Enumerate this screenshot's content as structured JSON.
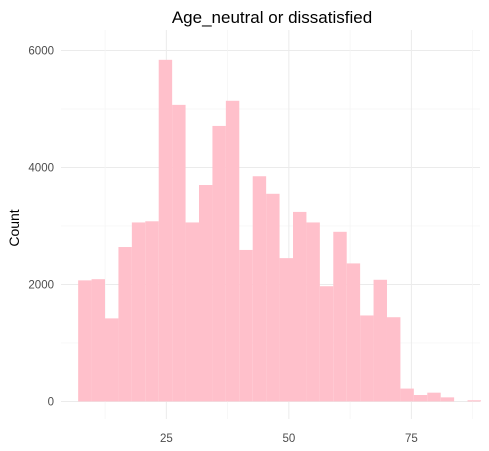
{
  "chart_data": {
    "type": "bar",
    "title": "Age_neutral or dissatisfied",
    "xlabel": "",
    "ylabel": "Count",
    "xlim": [
      3.5,
      89
    ],
    "ylim": [
      -300,
      6350
    ],
    "x_ticks": [
      25,
      50,
      75
    ],
    "y_ticks": [
      0,
      2000,
      4000,
      6000
    ],
    "grid": true,
    "bar_color": "#ffc0cb",
    "bins": [
      {
        "x0": 7.0,
        "x1": 9.74,
        "count": 2070
      },
      {
        "x0": 9.74,
        "x1": 12.48,
        "count": 2090
      },
      {
        "x0": 12.48,
        "x1": 15.22,
        "count": 1420
      },
      {
        "x0": 15.22,
        "x1": 17.96,
        "count": 2640
      },
      {
        "x0": 17.96,
        "x1": 20.7,
        "count": 3060
      },
      {
        "x0": 20.7,
        "x1": 23.44,
        "count": 3080
      },
      {
        "x0": 23.44,
        "x1": 26.18,
        "count": 5840
      },
      {
        "x0": 26.18,
        "x1": 28.92,
        "count": 5070
      },
      {
        "x0": 28.92,
        "x1": 31.66,
        "count": 3060
      },
      {
        "x0": 31.66,
        "x1": 34.4,
        "count": 3700
      },
      {
        "x0": 34.4,
        "x1": 37.14,
        "count": 4710
      },
      {
        "x0": 37.14,
        "x1": 39.88,
        "count": 5140
      },
      {
        "x0": 39.88,
        "x1": 42.62,
        "count": 2590
      },
      {
        "x0": 42.62,
        "x1": 45.36,
        "count": 3850
      },
      {
        "x0": 45.36,
        "x1": 48.1,
        "count": 3550
      },
      {
        "x0": 48.1,
        "x1": 50.84,
        "count": 2450
      },
      {
        "x0": 50.84,
        "x1": 53.58,
        "count": 3240
      },
      {
        "x0": 53.58,
        "x1": 56.32,
        "count": 3060
      },
      {
        "x0": 56.32,
        "x1": 59.06,
        "count": 1970
      },
      {
        "x0": 59.06,
        "x1": 61.8,
        "count": 2900
      },
      {
        "x0": 61.8,
        "x1": 64.54,
        "count": 2360
      },
      {
        "x0": 64.54,
        "x1": 67.28,
        "count": 1470
      },
      {
        "x0": 67.28,
        "x1": 70.02,
        "count": 2080
      },
      {
        "x0": 70.02,
        "x1": 72.76,
        "count": 1440
      },
      {
        "x0": 72.76,
        "x1": 75.5,
        "count": 220
      },
      {
        "x0": 75.5,
        "x1": 78.24,
        "count": 110
      },
      {
        "x0": 78.24,
        "x1": 80.98,
        "count": 150
      },
      {
        "x0": 80.98,
        "x1": 83.72,
        "count": 70
      },
      {
        "x0": 83.72,
        "x1": 86.46,
        "count": 0
      },
      {
        "x0": 86.46,
        "x1": 89.2,
        "count": 20
      }
    ]
  }
}
